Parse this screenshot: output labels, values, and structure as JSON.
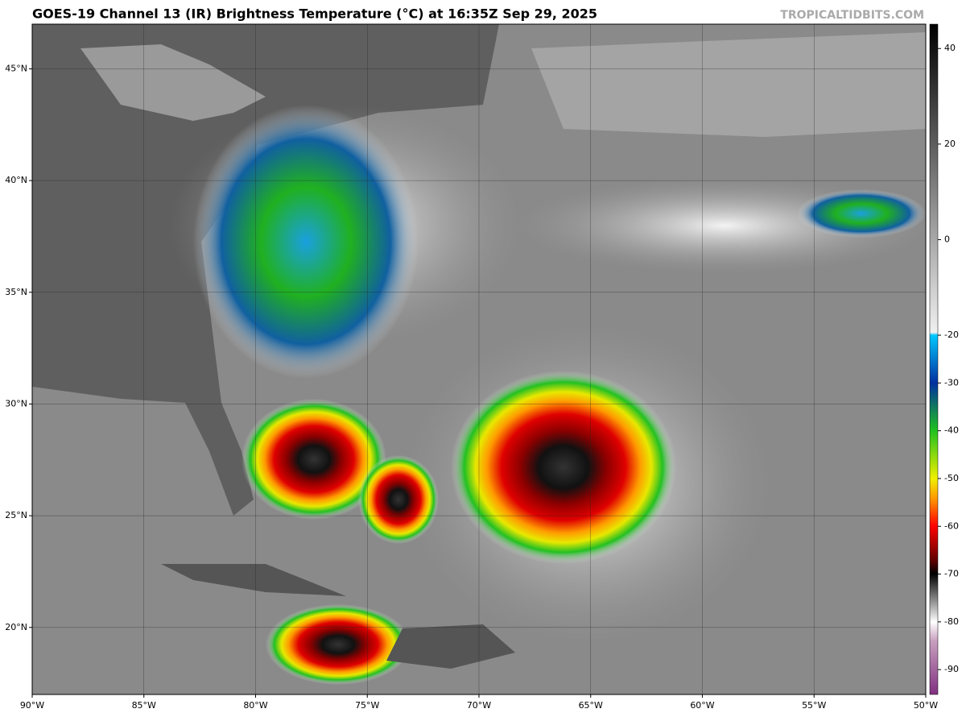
{
  "map": {
    "title": "GOES-19 Channel 13 (IR) Brightness Temperature (°C) at 16:35Z Sep 29, 2025",
    "credit": "TROPICALTIDBITS.COM",
    "lonlim": [
      -90,
      -50
    ],
    "latlim": [
      17.0,
      47.0
    ],
    "lon_ticks": [
      {
        "value": -90,
        "label": "90°W"
      },
      {
        "value": -85,
        "label": "85°W"
      },
      {
        "value": -80,
        "label": "80°W"
      },
      {
        "value": -75,
        "label": "75°W"
      },
      {
        "value": -70,
        "label": "70°W"
      },
      {
        "value": -65,
        "label": "65°W"
      },
      {
        "value": -60,
        "label": "60°W"
      },
      {
        "value": -55,
        "label": "55°W"
      },
      {
        "value": -50,
        "label": "50°W"
      }
    ],
    "lat_ticks": [
      {
        "value": 20,
        "label": "20°N"
      },
      {
        "value": 25,
        "label": "25°N"
      },
      {
        "value": 30,
        "label": "30°N"
      },
      {
        "value": 35,
        "label": "35°N"
      },
      {
        "value": 40,
        "label": "40°N"
      },
      {
        "value": 45,
        "label": "45°N"
      }
    ],
    "colorbar": {
      "lim": [
        -95.2,
        45.1
      ],
      "ticks": [
        40,
        20,
        0,
        -20,
        -30,
        -40,
        -50,
        -60,
        -70,
        -80,
        -90
      ]
    }
  }
}
